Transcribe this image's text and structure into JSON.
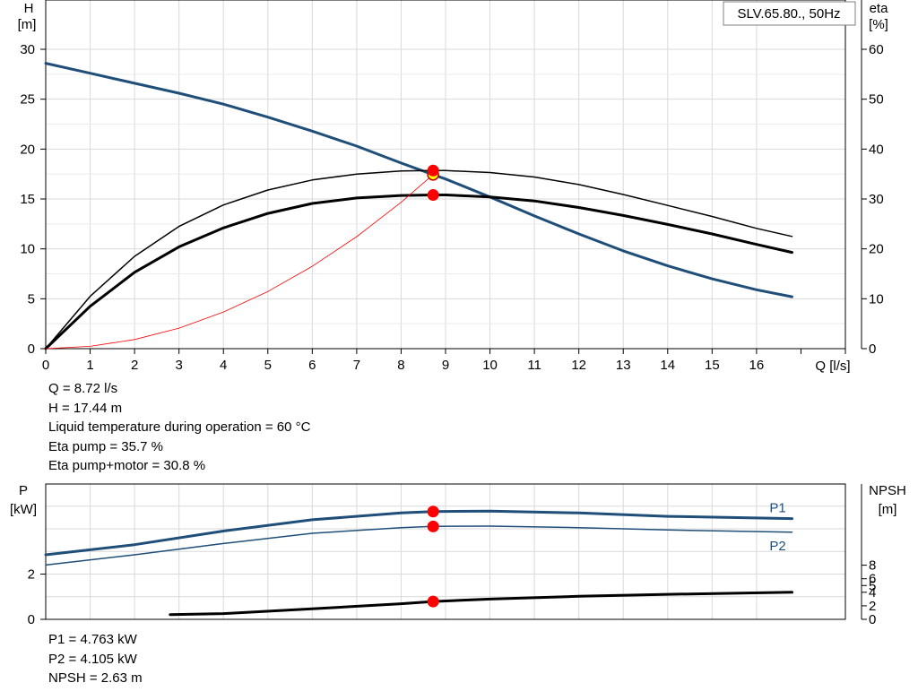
{
  "chart_data": [
    {
      "type": "line",
      "title": "SLV.65.80., 50Hz",
      "xlabel": "Q [l/s]",
      "ylabel_left": [
        "H",
        "[m]"
      ],
      "ylabel_right": [
        "eta",
        "[%]"
      ],
      "xlim": [
        0,
        18
      ],
      "ylim_left": [
        0,
        30
      ],
      "ylim_right": [
        0,
        60
      ],
      "x_ticks": [
        0,
        1,
        2,
        3,
        4,
        5,
        6,
        7,
        8,
        9,
        10,
        11,
        12,
        13,
        14,
        15,
        16
      ],
      "y_ticks_left": [
        0,
        5,
        10,
        15,
        20,
        25,
        30
      ],
      "y_ticks_right": [
        0,
        10,
        20,
        30,
        40,
        50,
        60
      ],
      "grid": true,
      "series": [
        {
          "id": "head",
          "axis": "left",
          "color": "#1f4e79",
          "width": 3,
          "x": [
            0,
            1,
            2,
            3,
            4,
            5,
            6,
            7,
            8,
            8.72,
            9,
            10,
            11,
            12,
            13,
            14,
            15,
            16,
            16.8
          ],
          "y": [
            28.6,
            27.6,
            26.6,
            25.6,
            24.5,
            23.2,
            21.8,
            20.3,
            18.6,
            17.44,
            17.0,
            15.2,
            13.3,
            11.5,
            9.8,
            8.3,
            7.0,
            5.9,
            5.2
          ]
        },
        {
          "id": "eta-pump",
          "axis": "right",
          "color": "#000000",
          "width": 1.5,
          "x": [
            0,
            1,
            2,
            3,
            4,
            5,
            6,
            7,
            8,
            8.72,
            9,
            10,
            11,
            12,
            13,
            14,
            15,
            16,
            16.8
          ],
          "y": [
            0,
            10.5,
            18.5,
            24.5,
            28.8,
            31.8,
            33.8,
            35.0,
            35.6,
            35.7,
            35.7,
            35.3,
            34.4,
            32.9,
            30.9,
            28.7,
            26.5,
            24.1,
            22.5
          ]
        },
        {
          "id": "eta-pump-motor",
          "axis": "right",
          "color": "#000000",
          "width": 3,
          "x": [
            0,
            1,
            2,
            3,
            4,
            5,
            6,
            7,
            8,
            8.72,
            9,
            10,
            11,
            12,
            13,
            14,
            15,
            16,
            16.8
          ],
          "y": [
            0,
            8.5,
            15.3,
            20.4,
            24.2,
            27.1,
            29.1,
            30.2,
            30.7,
            30.8,
            30.8,
            30.4,
            29.6,
            28.3,
            26.7,
            24.9,
            23.0,
            20.9,
            19.3
          ]
        },
        {
          "id": "system-curve",
          "axis": "left",
          "color": "#ff0000",
          "width": 0.8,
          "x": [
            0,
            1,
            2,
            3,
            4,
            5,
            6,
            7,
            8,
            8.72
          ],
          "y": [
            0,
            0.23,
            0.92,
            2.06,
            3.67,
            5.73,
            8.25,
            11.23,
            14.67,
            17.44
          ]
        }
      ],
      "operating_points": [
        {
          "x": 8.72,
          "y": 17.44,
          "axis": "left",
          "style": "yellow"
        },
        {
          "x": 8.72,
          "y": 35.7,
          "axis": "right",
          "style": "red"
        },
        {
          "x": 8.72,
          "y": 30.8,
          "axis": "right",
          "style": "red"
        }
      ]
    },
    {
      "type": "line",
      "ylabel_left": [
        "P",
        "[kW]"
      ],
      "ylabel_right": [
        "NPSH",
        "[m]"
      ],
      "xlim": [
        0,
        18
      ],
      "ylim_left": [
        0,
        6
      ],
      "ylim_right": [
        0,
        20
      ],
      "y_ticks_left": [
        0,
        2
      ],
      "y_ticks_right": [
        0,
        2,
        4,
        5,
        6,
        8
      ],
      "grid": true,
      "series": [
        {
          "id": "p1",
          "name": "P1",
          "axis": "left",
          "color": "#1f4e79",
          "width": 3,
          "x": [
            0,
            2,
            4,
            6,
            8,
            8.72,
            10,
            12,
            14,
            16.8
          ],
          "y": [
            2.85,
            3.3,
            3.9,
            4.4,
            4.7,
            4.763,
            4.78,
            4.7,
            4.55,
            4.45
          ]
        },
        {
          "id": "p2",
          "name": "P2",
          "axis": "left",
          "color": "#1f4e79",
          "width": 1.5,
          "x": [
            0,
            2,
            4,
            6,
            8,
            8.72,
            10,
            12,
            14,
            16.8
          ],
          "y": [
            2.4,
            2.85,
            3.35,
            3.8,
            4.05,
            4.105,
            4.12,
            4.05,
            3.95,
            3.85
          ]
        },
        {
          "id": "npsh",
          "axis": "right",
          "color": "#000000",
          "width": 3,
          "x": [
            2.8,
            4,
            6,
            8,
            8.72,
            10,
            12,
            14,
            16.8
          ],
          "y": [
            0.7,
            0.85,
            1.55,
            2.3,
            2.63,
            3.0,
            3.4,
            3.7,
            4.0
          ]
        }
      ],
      "operating_points": [
        {
          "x": 8.72,
          "y": 4.763,
          "axis": "left"
        },
        {
          "x": 8.72,
          "y": 4.105,
          "axis": "left"
        },
        {
          "x": 8.72,
          "y": 2.63,
          "axis": "right"
        }
      ]
    }
  ],
  "info_top": [
    "Q = 8.72 l/s",
    "H = 17.44 m",
    "Liquid temperature during operation = 60 °C",
    "Eta pump = 35.7 %",
    "Eta pump+motor = 30.8 %"
  ],
  "info_bottom": [
    "P1 = 4.763 kW",
    "P2 = 4.105 kW",
    "NPSH = 2.63 m"
  ]
}
